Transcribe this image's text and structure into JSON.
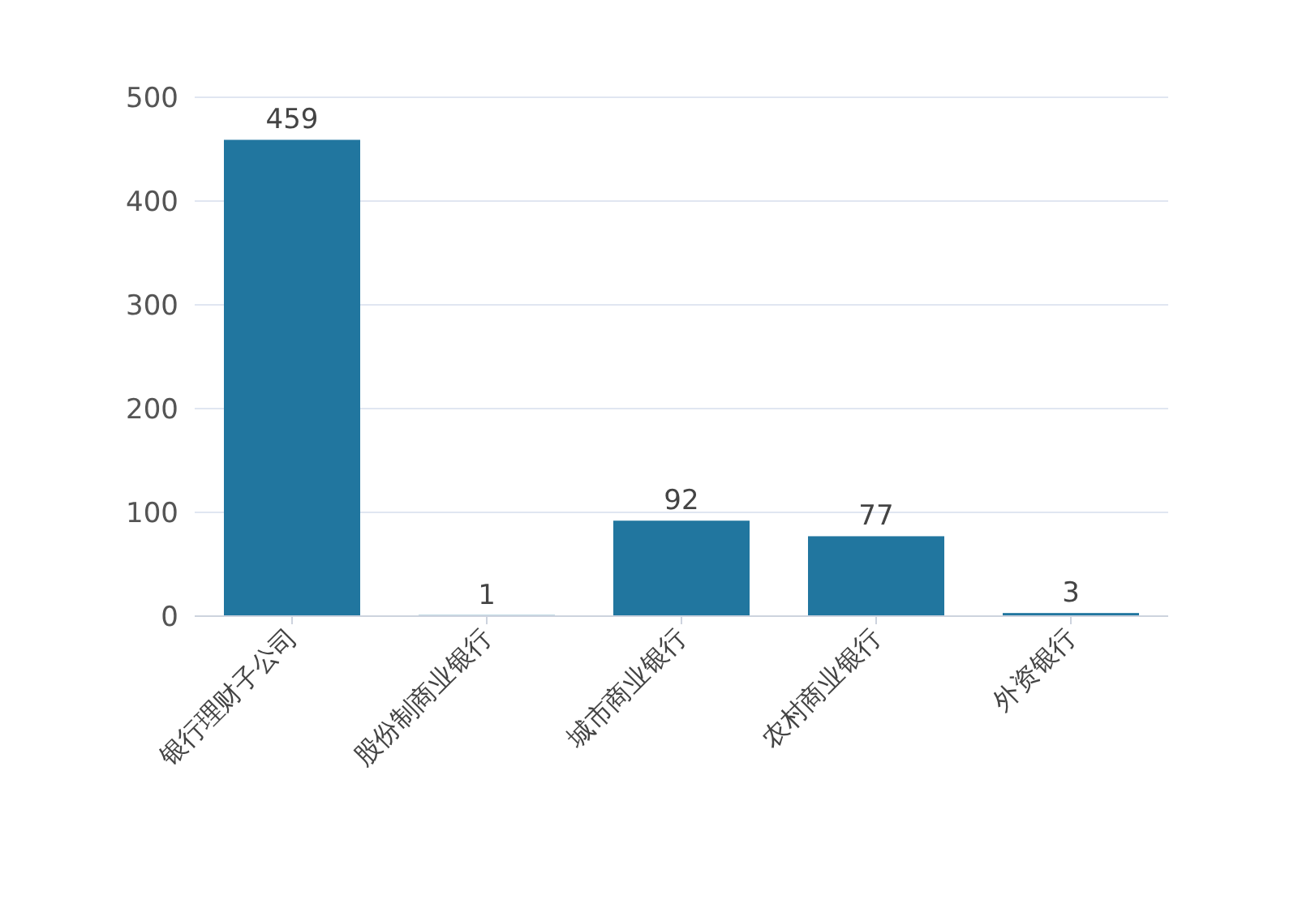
{
  "chart_data": {
    "type": "bar",
    "categories": [
      "银行理财子公司",
      "股份制商业银行",
      "城市商业银行",
      "农村商业银行",
      "外资银行"
    ],
    "values": [
      459,
      1,
      92,
      77,
      3
    ],
    "color": "#21769f",
    "ylim": [
      0,
      500
    ],
    "yticks": [
      0,
      100,
      200,
      300,
      400,
      500
    ],
    "grid": "y",
    "data_labels": true
  }
}
